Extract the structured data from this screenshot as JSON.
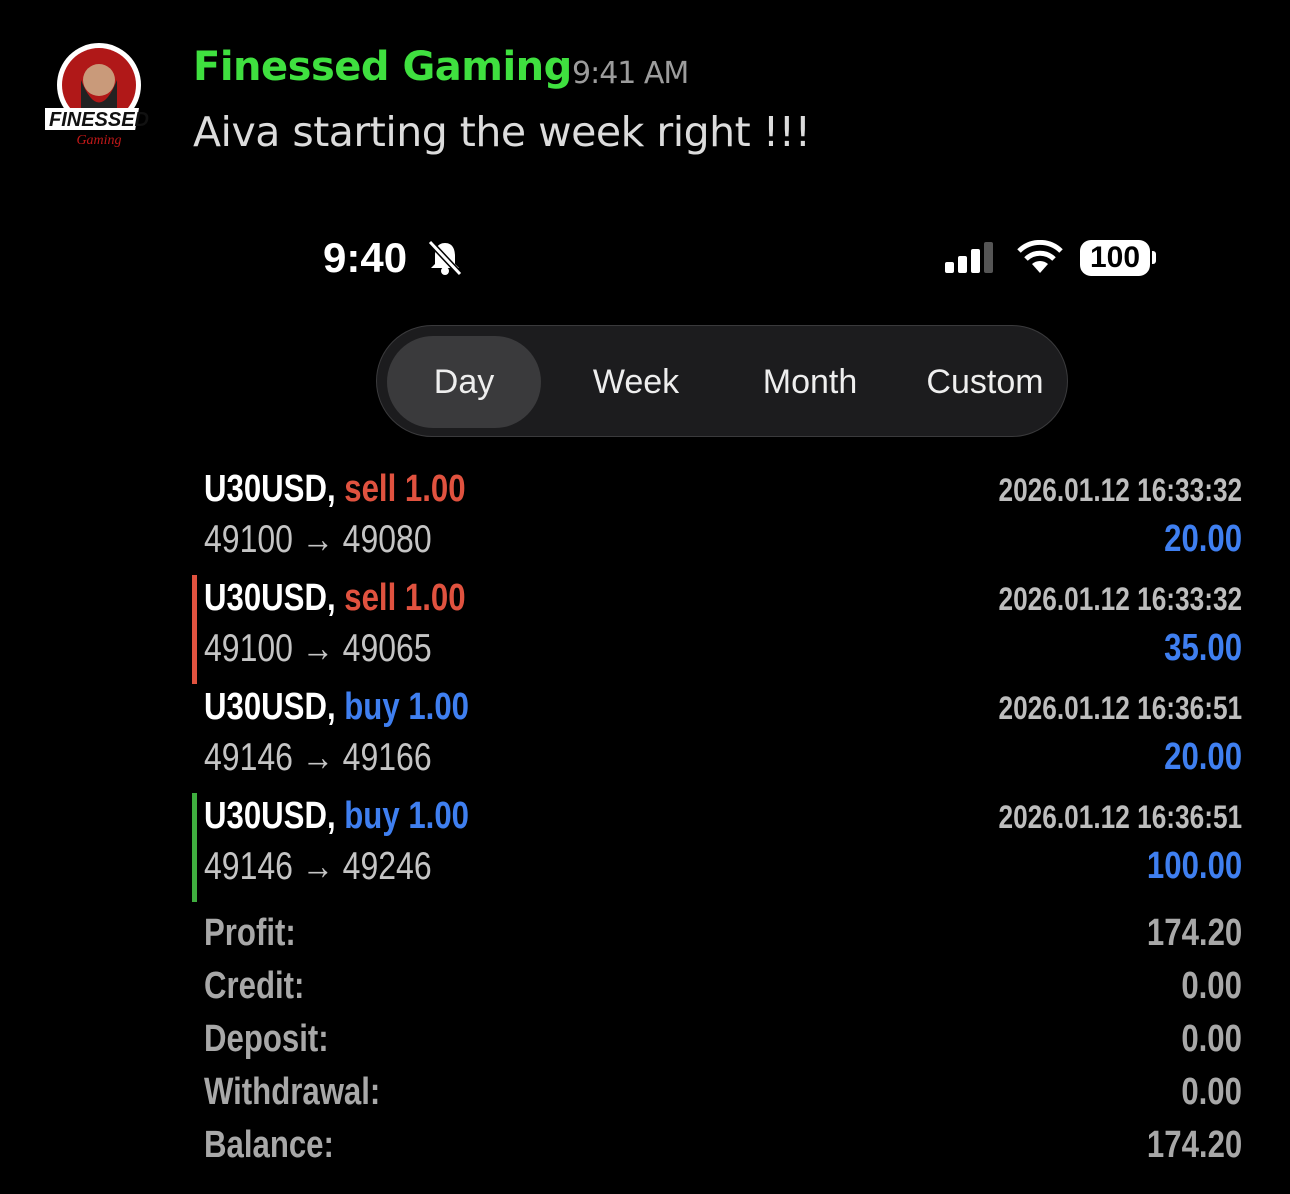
{
  "message": {
    "author": "Finessed Gaming",
    "time": "9:41 AM",
    "text": "Aiva starting the week right !!!",
    "avatar_text": "FINESSED Gaming"
  },
  "status_bar": {
    "time": "9:40",
    "battery": "100",
    "icons": [
      "bell-slash-icon",
      "signal-icon",
      "wifi-icon",
      "battery-icon"
    ]
  },
  "tabs": [
    {
      "label": "Day",
      "selected": true
    },
    {
      "label": "Week"
    },
    {
      "label": "Month"
    },
    {
      "label": "Custom"
    }
  ],
  "trades": [
    {
      "symbol": "U30USD,",
      "side": "sell 1.00",
      "prices": "49100 → 49080",
      "time": "2026.01.12 16:33:32",
      "profit": "20.00",
      "marker": ""
    },
    {
      "symbol": "U30USD,",
      "side": "sell 1.00",
      "prices": "49100 → 49065",
      "time": "2026.01.12 16:33:32",
      "profit": "35.00",
      "marker": "#e0523f"
    },
    {
      "symbol": "U30USD,",
      "side": "buy 1.00",
      "prices": "49146 → 49166",
      "time": "2026.01.12 16:36:51",
      "profit": "20.00",
      "marker": ""
    },
    {
      "symbol": "U30USD,",
      "side": "buy 1.00",
      "prices": "49146 → 49246",
      "time": "2026.01.12 16:36:51",
      "profit": "100.00",
      "marker": "#3fae3f"
    }
  ],
  "summary": [
    {
      "label": "Profit:",
      "value": "174.20"
    },
    {
      "label": "Credit:",
      "value": "0.00"
    },
    {
      "label": "Deposit:",
      "value": "0.00"
    },
    {
      "label": "Withdrawal:",
      "value": "0.00"
    },
    {
      "label": "Balance:",
      "value": "174.20"
    }
  ],
  "colors": {
    "sell": "#e0523f",
    "buy": "#3f7ff0",
    "author": "#3fe03f"
  }
}
